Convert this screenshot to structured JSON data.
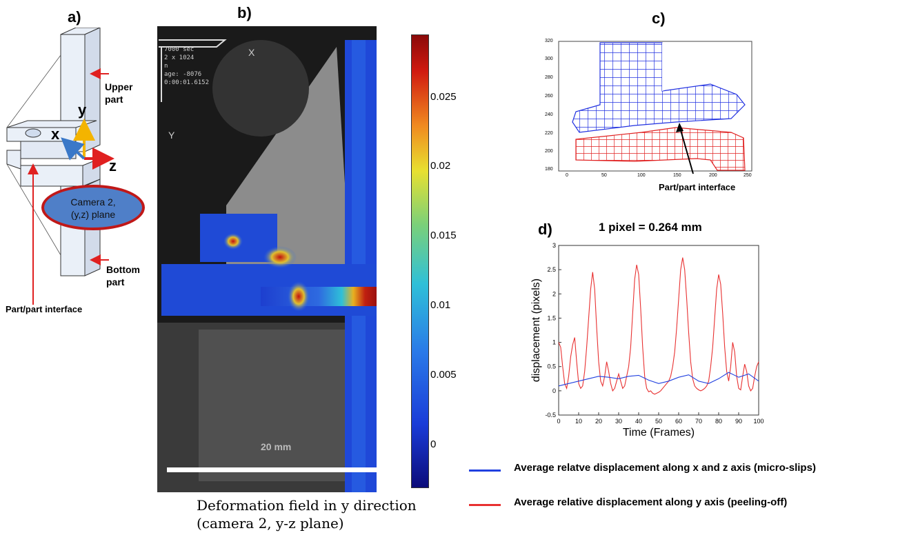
{
  "panel_a": {
    "label": "a)",
    "upper_part": "Upper part",
    "bottom_part": "Bottom part",
    "axis_x": "x",
    "axis_y": "y",
    "axis_z": "z",
    "camera_line1": "Camera 2,",
    "camera_line2": "(y,z) plane",
    "interface_label": "Part/part interface",
    "colors": {
      "arrow": "#e02020",
      "axis_y": "#f4b400",
      "axis_x": "#3a78c8",
      "camera_fill": "#4f7fc8",
      "camera_stroke": "#c01818"
    }
  },
  "panel_b": {
    "label": "b)",
    "overlay_lines": [
      "7000 sec",
      "2 x 1024",
      "n",
      "age: -8076",
      "0:00:01.6152"
    ],
    "x_marker": "X",
    "y_marker": "Y",
    "scale_text": "20 mm",
    "colorbar_ticks": [
      "0.025",
      "0.02",
      "0.015",
      "0.01",
      "0.005",
      "0"
    ],
    "caption_line1": "Deformation field in y direction",
    "caption_line2": "(camera 2, y-z plane)"
  },
  "panel_c": {
    "label": "c)",
    "y_ticks": [
      "320",
      "300",
      "280",
      "260",
      "240",
      "220",
      "200",
      "180"
    ],
    "x_ticks": [
      "0",
      "50",
      "100",
      "150",
      "200",
      "250"
    ],
    "interface_label": "Part/part interface"
  },
  "panel_d": {
    "label": "d)",
    "title": "1 pixel = 0.264 mm",
    "legend_blue": "Average relatve displacement along x and z axis (micro-slips)",
    "legend_red": "Average relative displacement along y axis (peeling-off)",
    "chart_data": {
      "type": "line",
      "title": "1 pixel = 0.264 mm",
      "xlabel": "Time (Frames)",
      "ylabel": "displacement (pixels)",
      "xlim": [
        0,
        100
      ],
      "ylim": [
        -0.5,
        3
      ],
      "x_ticks": [
        "0",
        "10",
        "20",
        "30",
        "40",
        "50",
        "60",
        "70",
        "80",
        "90",
        "100"
      ],
      "y_ticks": [
        "-0.5",
        "0",
        "0.5",
        "1",
        "1.5",
        "2",
        "2.5",
        "3"
      ],
      "series": [
        {
          "name": "Average relative displacement along y axis (peeling-off)",
          "color": "#e83030",
          "x": [
            0,
            1,
            2,
            3,
            4,
            5,
            6,
            7,
            8,
            9,
            10,
            11,
            12,
            13,
            14,
            15,
            16,
            17,
            18,
            19,
            20,
            21,
            22,
            23,
            24,
            25,
            26,
            27,
            28,
            29,
            30,
            31,
            32,
            33,
            34,
            35,
            36,
            37,
            38,
            39,
            40,
            41,
            42,
            43,
            44,
            45,
            46,
            47,
            48,
            49,
            50,
            51,
            52,
            53,
            54,
            55,
            56,
            57,
            58,
            59,
            60,
            61,
            62,
            63,
            64,
            65,
            66,
            67,
            68,
            69,
            70,
            71,
            72,
            73,
            74,
            75,
            76,
            77,
            78,
            79,
            80,
            81,
            82,
            83,
            84,
            85,
            86,
            87,
            88,
            89,
            90,
            91,
            92,
            93,
            94,
            95,
            96,
            97,
            98,
            99,
            100
          ],
          "y": [
            1.0,
            0.9,
            0.5,
            0.15,
            0.05,
            0.3,
            0.7,
            0.95,
            1.1,
            0.6,
            0.15,
            0.05,
            0.1,
            0.4,
            0.9,
            1.5,
            2.1,
            2.45,
            2.1,
            1.3,
            0.6,
            0.2,
            0.1,
            0.3,
            0.6,
            0.4,
            0.15,
            0.0,
            0.05,
            0.2,
            0.35,
            0.2,
            0.05,
            0.1,
            0.3,
            0.5,
            0.9,
            1.6,
            2.3,
            2.6,
            2.4,
            1.7,
            0.9,
            0.3,
            0.05,
            -0.02,
            0.0,
            -0.05,
            -0.07,
            -0.05,
            -0.03,
            0.0,
            0.05,
            0.1,
            0.15,
            0.2,
            0.3,
            0.5,
            0.8,
            1.3,
            1.9,
            2.5,
            2.75,
            2.5,
            1.9,
            1.2,
            0.6,
            0.25,
            0.1,
            0.05,
            0.02,
            0.0,
            0.02,
            0.05,
            0.1,
            0.2,
            0.5,
            0.9,
            1.5,
            2.1,
            2.4,
            2.2,
            1.6,
            0.9,
            0.4,
            0.2,
            0.5,
            1.0,
            0.8,
            0.3,
            0.05,
            0.02,
            0.3,
            0.55,
            0.4,
            0.1,
            0.0,
            0.05,
            0.3,
            0.5,
            0.6
          ]
        },
        {
          "name": "Average relatve displacement along x and z axis (micro-slips)",
          "color": "#2040e0",
          "x": [
            0,
            5,
            10,
            15,
            20,
            25,
            30,
            35,
            40,
            45,
            50,
            55,
            60,
            65,
            70,
            75,
            80,
            85,
            90,
            95,
            100
          ],
          "y": [
            0.1,
            0.15,
            0.2,
            0.25,
            0.3,
            0.28,
            0.25,
            0.3,
            0.32,
            0.22,
            0.15,
            0.2,
            0.28,
            0.33,
            0.2,
            0.15,
            0.25,
            0.38,
            0.28,
            0.35,
            0.2
          ]
        }
      ]
    }
  }
}
